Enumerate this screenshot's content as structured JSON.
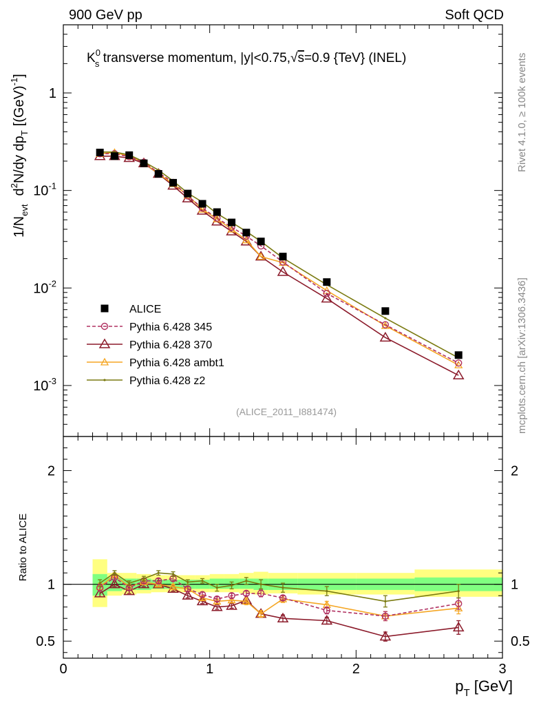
{
  "header": {
    "left": "900 GeV pp",
    "right": "Soft QCD"
  },
  "side_text": {
    "rivet": "Rivet 4.1.0, ≥ 100k events",
    "mcplots": "mcplots.cern.ch [arXiv:1306.3436]"
  },
  "colors": {
    "alice": "#000000",
    "p345": "#b03060",
    "p370": "#8b1a2a",
    "ambt1": "#f5a623",
    "z2": "#7a7a10",
    "band_outer": "#ffff80",
    "band_inner": "#80ff80"
  },
  "chart_data": [
    {
      "type": "scatter",
      "title_parts": {
        "k": "K",
        "k_sup": "0",
        "k_sub": "s",
        "t1": " transverse momentum, |y|<0.75,",
        "sqrt": "√",
        "s": "s",
        "t2": "=0.9 {TeV} (INEL)"
      },
      "ylabel_parts": {
        "a": "1/N",
        "a_sub": "evt",
        "b": "d",
        "b_sup": "2",
        "c": "N/dy dp",
        "c_sub": "T",
        "d": "[(GeV)",
        "d_sup": "-1",
        "e": "]"
      },
      "yscale": "log",
      "ylim": [
        0.0003,
        5
      ],
      "xlim": [
        0,
        3
      ],
      "yticks": [
        {
          "value": 0.001,
          "base": "10",
          "exp": "-3"
        },
        {
          "value": 0.01,
          "base": "10",
          "exp": "-2"
        },
        {
          "value": 0.1,
          "base": "10",
          "exp": "-1"
        },
        {
          "value": 1,
          "base": "1",
          "exp": ""
        }
      ],
      "watermark": "(ALICE_2011_I881474)",
      "x": [
        0.25,
        0.35,
        0.45,
        0.55,
        0.65,
        0.75,
        0.85,
        0.95,
        1.05,
        1.15,
        1.25,
        1.35,
        1.5,
        1.8,
        2.2,
        2.7
      ],
      "series": [
        {
          "name": "ALICE",
          "key": "alice",
          "values": [
            0.245,
            0.225,
            0.23,
            0.19,
            0.148,
            0.12,
            0.093,
            0.073,
            0.06,
            0.047,
            0.037,
            0.03,
            0.021,
            0.0115,
            0.0058,
            0.00205
          ]
        },
        {
          "name": "Pythia 6.428 345",
          "key": "p345",
          "values": [
            0.238,
            0.238,
            0.222,
            0.195,
            0.152,
            0.121,
            0.088,
            0.066,
            0.052,
            0.042,
            0.034,
            0.027,
            0.0185,
            0.0088,
            0.0042,
            0.0017
          ]
        },
        {
          "name": "Pythia 6.428 370",
          "key": "p370",
          "values": [
            0.225,
            0.225,
            0.215,
            0.19,
            0.148,
            0.112,
            0.083,
            0.062,
            0.048,
            0.038,
            0.03,
            0.021,
            0.0146,
            0.0078,
            0.0031,
            0.00127
          ]
        },
        {
          "name": "Pythia 6.428 ambt1",
          "key": "ambt1",
          "values": [
            0.238,
            0.245,
            0.225,
            0.193,
            0.148,
            0.117,
            0.089,
            0.064,
            0.051,
            0.04,
            0.031,
            0.021,
            0.0182,
            0.0094,
            0.0041,
            0.00162
          ]
        },
        {
          "name": "Pythia 6.428 z2",
          "key": "z2",
          "values": [
            0.248,
            0.248,
            0.232,
            0.197,
            0.162,
            0.125,
            0.094,
            0.076,
            0.058,
            0.047,
            0.038,
            0.03,
            0.0203,
            0.0108,
            0.0049,
            0.00192
          ]
        }
      ]
    },
    {
      "type": "line",
      "ylabel": "Ratio to ALICE",
      "xlabel_parts": {
        "a": "p",
        "a_sub": "T",
        "b": " [GeV]"
      },
      "xlim": [
        0,
        3
      ],
      "ylim": [
        0.35,
        2.3
      ],
      "xticks": [
        0,
        1,
        2,
        3
      ],
      "yticks": [
        0.5,
        1,
        2
      ],
      "ytick_labels": [
        "0.5",
        "1",
        "2"
      ],
      "x": [
        0.25,
        0.35,
        0.45,
        0.55,
        0.65,
        0.75,
        0.85,
        0.95,
        1.05,
        1.15,
        1.25,
        1.35,
        1.5,
        1.8,
        2.2,
        2.7
      ],
      "bands": [
        {
          "x0": 0.2,
          "x1": 0.3,
          "outer": [
            0.8,
            1.22
          ],
          "inner": [
            0.9,
            1.09
          ]
        },
        {
          "x0": 0.3,
          "x1": 0.4,
          "outer": [
            0.9,
            1.1
          ],
          "inner": [
            0.94,
            1.06
          ]
        },
        {
          "x0": 0.4,
          "x1": 0.5,
          "outer": [
            0.91,
            1.1
          ],
          "inner": [
            0.95,
            1.05
          ]
        },
        {
          "x0": 0.5,
          "x1": 0.6,
          "outer": [
            0.92,
            1.09
          ],
          "inner": [
            0.95,
            1.05
          ]
        },
        {
          "x0": 0.6,
          "x1": 0.7,
          "outer": [
            0.93,
            1.08
          ],
          "inner": [
            0.96,
            1.04
          ]
        },
        {
          "x0": 0.7,
          "x1": 0.8,
          "outer": [
            0.93,
            1.08
          ],
          "inner": [
            0.96,
            1.04
          ]
        },
        {
          "x0": 0.8,
          "x1": 0.9,
          "outer": [
            0.93,
            1.08
          ],
          "inner": [
            0.96,
            1.04
          ]
        },
        {
          "x0": 0.9,
          "x1": 1.0,
          "outer": [
            0.93,
            1.08
          ],
          "inner": [
            0.96,
            1.04
          ]
        },
        {
          "x0": 1.0,
          "x1": 1.1,
          "outer": [
            0.93,
            1.09
          ],
          "inner": [
            0.96,
            1.05
          ]
        },
        {
          "x0": 1.1,
          "x1": 1.2,
          "outer": [
            0.93,
            1.09
          ],
          "inner": [
            0.96,
            1.05
          ]
        },
        {
          "x0": 1.2,
          "x1": 1.3,
          "outer": [
            0.92,
            1.1
          ],
          "inner": [
            0.96,
            1.05
          ]
        },
        {
          "x0": 1.3,
          "x1": 1.4,
          "outer": [
            0.91,
            1.11
          ],
          "inner": [
            0.95,
            1.05
          ]
        },
        {
          "x0": 1.4,
          "x1": 1.6,
          "outer": [
            0.92,
            1.1
          ],
          "inner": [
            0.95,
            1.05
          ]
        },
        {
          "x0": 1.6,
          "x1": 2.0,
          "outer": [
            0.91,
            1.1
          ],
          "inner": [
            0.95,
            1.05
          ]
        },
        {
          "x0": 2.0,
          "x1": 2.4,
          "outer": [
            0.91,
            1.1
          ],
          "inner": [
            0.95,
            1.05
          ]
        },
        {
          "x0": 2.4,
          "x1": 3.0,
          "outer": [
            0.89,
            1.13
          ],
          "inner": [
            0.94,
            1.06
          ]
        }
      ],
      "series": [
        {
          "name": "Pythia 6.428 345",
          "key": "p345",
          "values": [
            0.97,
            1.06,
            0.97,
            1.03,
            1.03,
            1.05,
            0.96,
            0.91,
            0.87,
            0.9,
            0.92,
            0.92,
            0.88,
            0.77,
            0.72,
            0.83
          ],
          "errors": [
            0.03,
            0.02,
            0.02,
            0.02,
            0.02,
            0.02,
            0.02,
            0.02,
            0.02,
            0.02,
            0.02,
            0.03,
            0.02,
            0.03,
            0.04,
            0.05
          ]
        },
        {
          "name": "Pythia 6.428 370",
          "key": "p370",
          "values": [
            0.92,
            1.0,
            0.94,
            1.0,
            1.0,
            0.96,
            0.9,
            0.85,
            0.8,
            0.81,
            0.86,
            0.74,
            0.7,
            0.68,
            0.54,
            0.62
          ],
          "errors": [
            0.03,
            0.02,
            0.02,
            0.02,
            0.02,
            0.02,
            0.02,
            0.02,
            0.02,
            0.02,
            0.02,
            0.03,
            0.03,
            0.03,
            0.04,
            0.06
          ]
        },
        {
          "name": "Pythia 6.428 ambt1",
          "key": "ambt1",
          "values": [
            0.98,
            1.08,
            0.98,
            1.02,
            1.0,
            0.98,
            0.96,
            0.88,
            0.85,
            0.86,
            0.85,
            0.74,
            0.87,
            0.82,
            0.72,
            0.79
          ],
          "errors": [
            0.03,
            0.02,
            0.02,
            0.02,
            0.02,
            0.02,
            0.02,
            0.02,
            0.02,
            0.02,
            0.03,
            0.03,
            0.03,
            0.03,
            0.04,
            0.05
          ]
        },
        {
          "name": "Pythia 6.428 z2",
          "key": "z2",
          "values": [
            1.01,
            1.1,
            1.01,
            1.05,
            1.1,
            1.09,
            1.02,
            1.03,
            0.97,
            0.99,
            1.03,
            1.0,
            0.97,
            0.94,
            0.85,
            0.94
          ],
          "errors": [
            0.03,
            0.02,
            0.02,
            0.02,
            0.02,
            0.02,
            0.02,
            0.02,
            0.03,
            0.03,
            0.03,
            0.04,
            0.04,
            0.04,
            0.05,
            0.06
          ]
        }
      ]
    }
  ]
}
